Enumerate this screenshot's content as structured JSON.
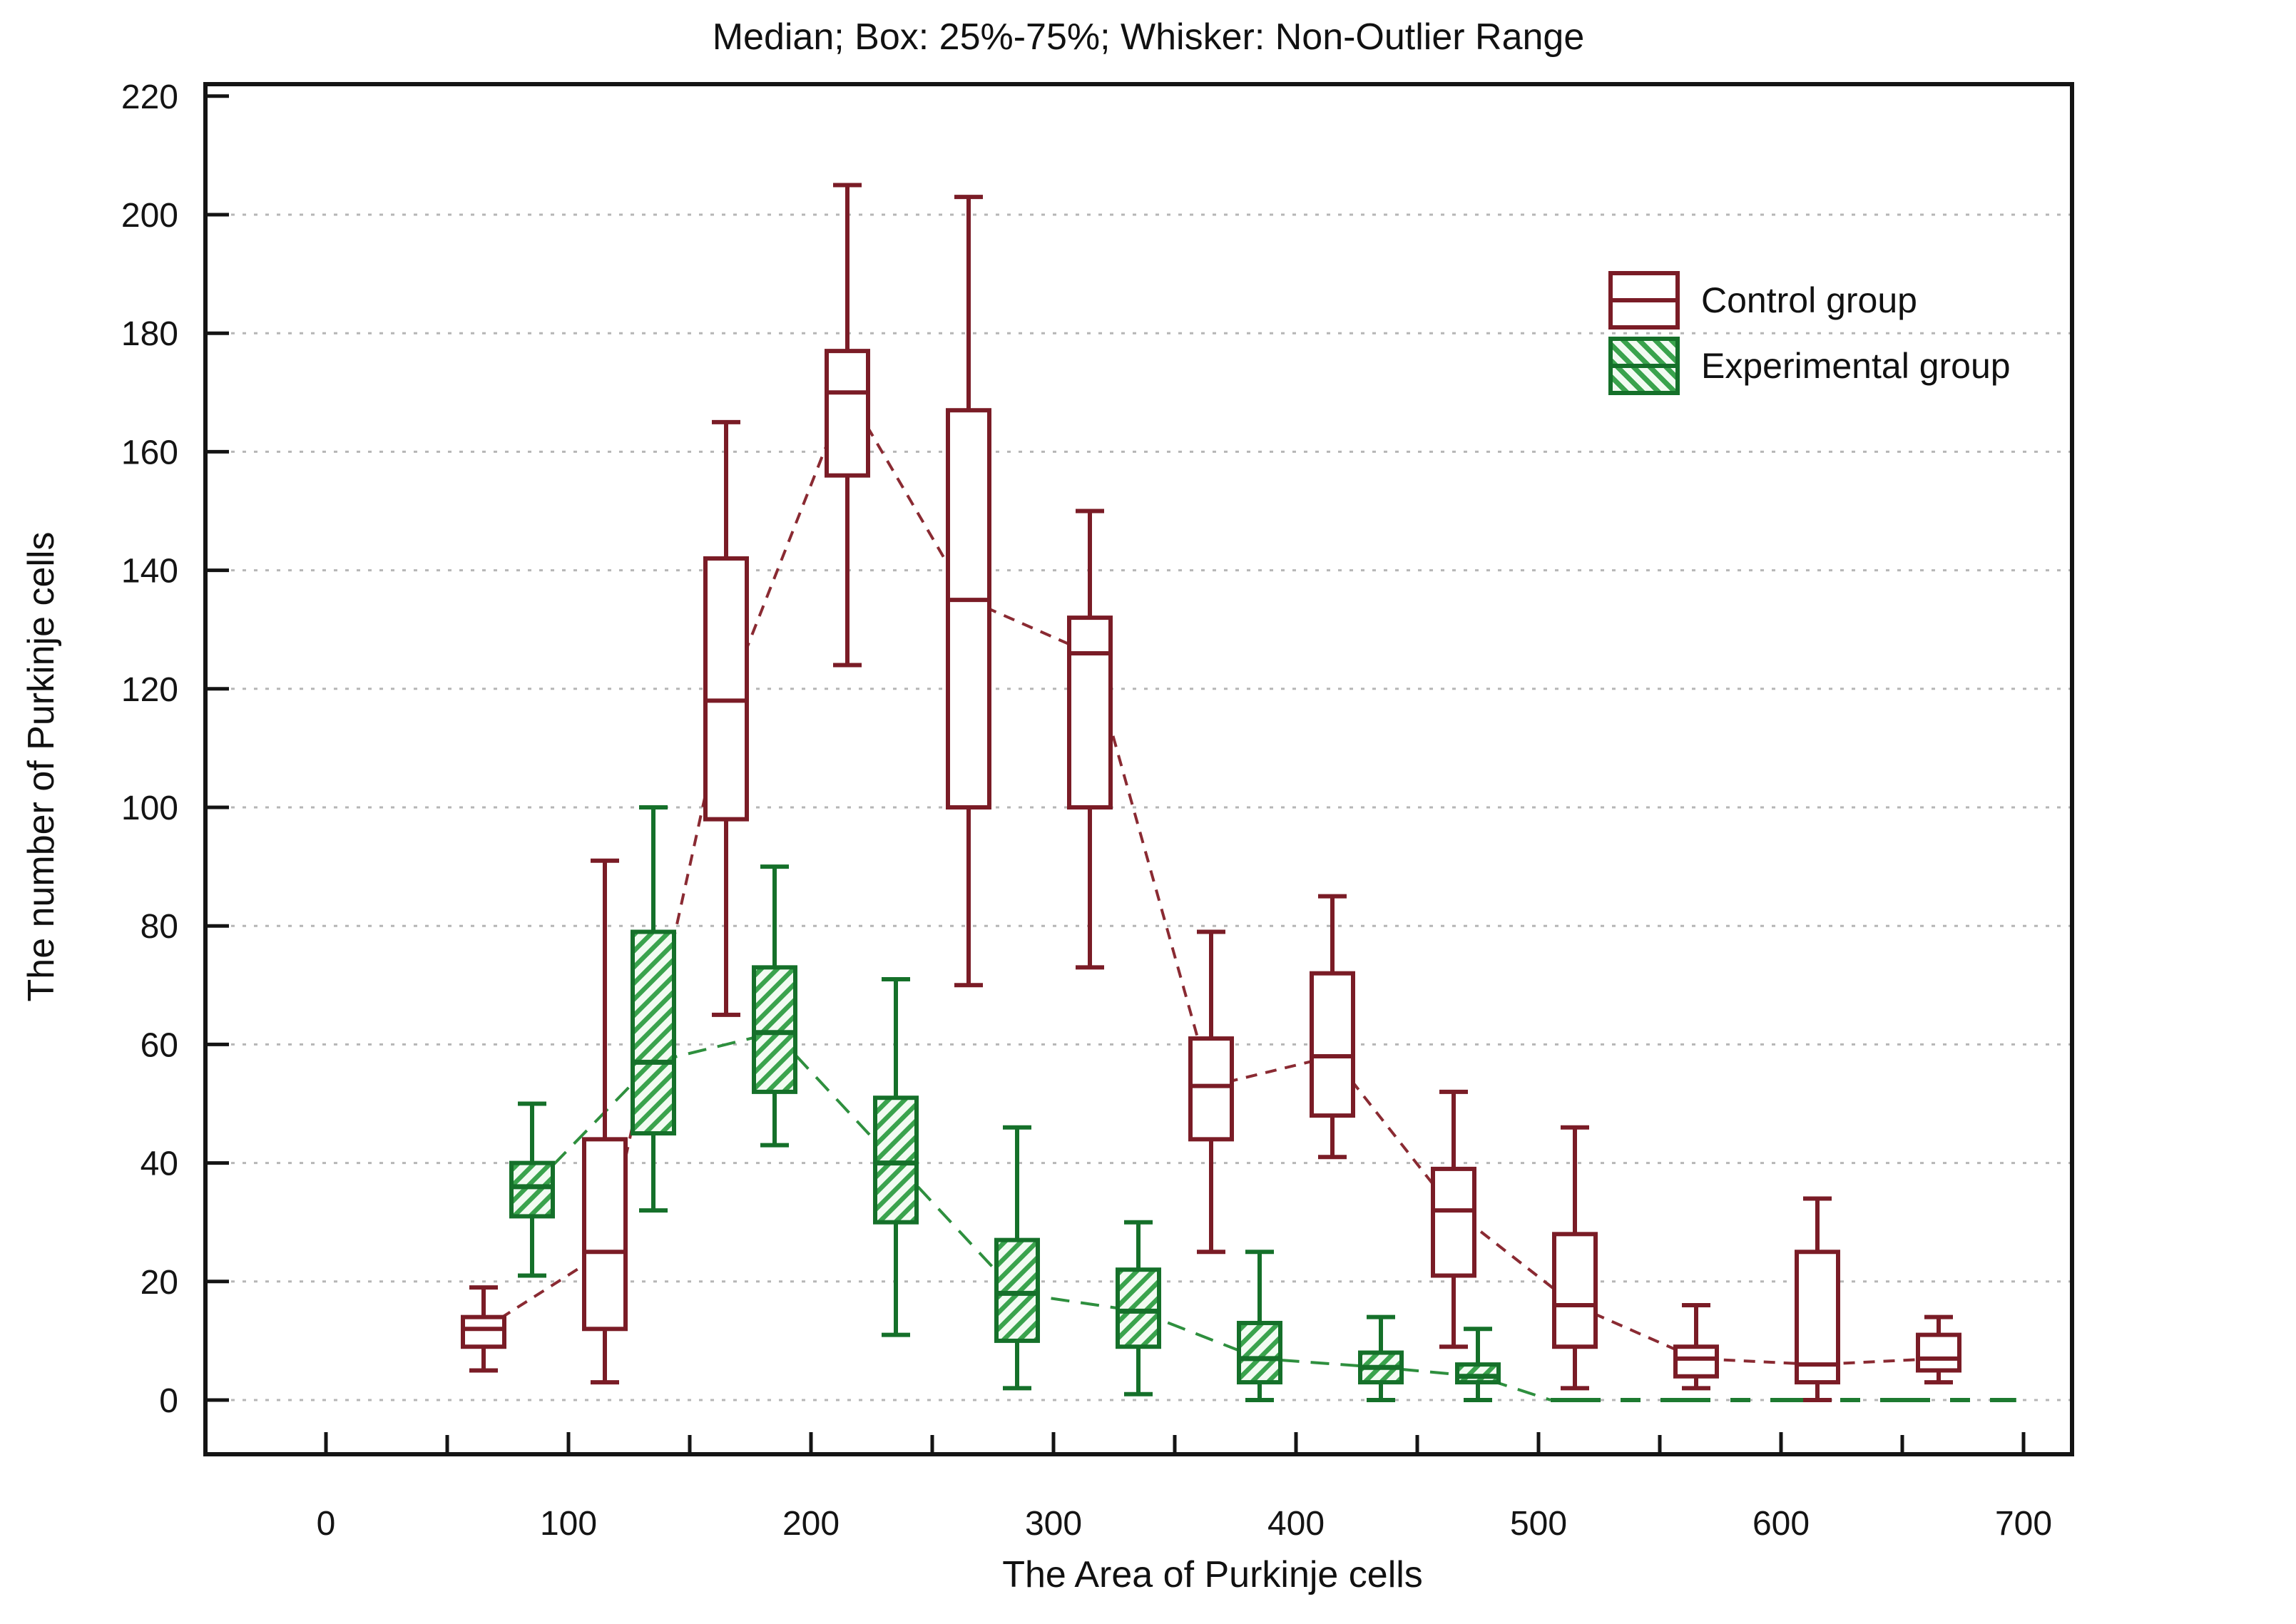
{
  "title": "Median; Box: 25%-75%; Whisker: Non-Outlier Range",
  "x_axis": {
    "label": "The Area of Purkinje cells",
    "major_ticks": [
      0,
      100,
      200,
      300,
      400,
      500,
      600,
      700
    ],
    "minor_ticks": [
      50,
      150,
      250,
      350,
      450,
      550,
      650
    ],
    "range": [
      -50,
      720
    ]
  },
  "y_axis": {
    "label": "The number of Purkinje cells",
    "ticks": [
      0,
      20,
      40,
      60,
      80,
      100,
      120,
      140,
      160,
      180,
      200,
      220
    ],
    "gridlines": [
      0,
      20,
      40,
      60,
      80,
      100,
      120,
      140,
      160,
      180,
      200
    ],
    "range": [
      -9,
      222
    ]
  },
  "legend": [
    {
      "label": "Control group",
      "swatch": "open-box",
      "color": "#7a1c26"
    },
    {
      "label": "Experimental group",
      "swatch": "hatched-box",
      "color": "#15702a"
    }
  ],
  "chart_data": {
    "type": "box",
    "title": "Median; Box: 25%-75%; Whisker: Non-Outlier Range",
    "xlabel": "The Area of Purkinje cells",
    "ylabel": "The number of Purkinje cells",
    "xlim": [
      -50,
      720
    ],
    "ylim": [
      -9,
      222
    ],
    "grid": "dotted-horizontal",
    "legend_position": "upper-right-inside",
    "series": [
      {
        "id": "control",
        "name": "Control group",
        "style": "open-box",
        "color": "#7a1c26",
        "line_style": "dashed",
        "boxes": [
          {
            "x": 65,
            "lo": 5,
            "q1": 9,
            "med": 12,
            "q3": 14,
            "hi": 19
          },
          {
            "x": 115,
            "lo": 3,
            "q1": 12,
            "med": 25,
            "q3": 44,
            "hi": 91
          },
          {
            "x": 165,
            "lo": 65,
            "q1": 98,
            "med": 118,
            "q3": 142,
            "hi": 165
          },
          {
            "x": 215,
            "lo": 124,
            "q1": 156,
            "med": 170,
            "q3": 177,
            "hi": 205
          },
          {
            "x": 265,
            "lo": 70,
            "q1": 100,
            "med": 135,
            "q3": 167,
            "hi": 203
          },
          {
            "x": 315,
            "lo": 73,
            "q1": 100,
            "med": 126,
            "q3": 132,
            "hi": 150
          },
          {
            "x": 365,
            "lo": 25,
            "q1": 44,
            "med": 53,
            "q3": 61,
            "hi": 79
          },
          {
            "x": 415,
            "lo": 41,
            "q1": 48,
            "med": 58,
            "q3": 72,
            "hi": 85
          },
          {
            "x": 465,
            "lo": 9,
            "q1": 21,
            "med": 32,
            "q3": 39,
            "hi": 52
          },
          {
            "x": 515,
            "lo": 2,
            "q1": 9,
            "med": 16,
            "q3": 28,
            "hi": 46
          },
          {
            "x": 565,
            "lo": 2,
            "q1": 4,
            "med": 7,
            "q3": 9,
            "hi": 16
          },
          {
            "x": 615,
            "lo": 0,
            "q1": 3,
            "med": 6,
            "q3": 25,
            "hi": 34
          },
          {
            "x": 665,
            "lo": 3,
            "q1": 5,
            "med": 7,
            "q3": 11,
            "hi": 14
          }
        ]
      },
      {
        "id": "exp",
        "name": "Experimental group",
        "style": "hatched-box",
        "color": "#15702a",
        "line_style": "dashed",
        "connector_end": {
          "x": 505,
          "y": 0
        },
        "boxes": [
          {
            "x": 85,
            "lo": 21,
            "q1": 31,
            "med": 36,
            "q3": 40,
            "hi": 50
          },
          {
            "x": 135,
            "lo": 32,
            "q1": 45,
            "med": 57,
            "q3": 79,
            "hi": 100
          },
          {
            "x": 185,
            "lo": 43,
            "q1": 52,
            "med": 62,
            "q3": 73,
            "hi": 90
          },
          {
            "x": 235,
            "lo": 11,
            "q1": 30,
            "med": 40,
            "q3": 51,
            "hi": 71
          },
          {
            "x": 285,
            "lo": 2,
            "q1": 10,
            "med": 18,
            "q3": 27,
            "hi": 46
          },
          {
            "x": 335,
            "lo": 1,
            "q1": 9,
            "med": 15,
            "q3": 22,
            "hi": 30
          },
          {
            "x": 385,
            "lo": 0,
            "q1": 3,
            "med": 7,
            "q3": 13,
            "hi": 25
          },
          {
            "x": 435,
            "lo": 0,
            "q1": 3,
            "med": 5.5,
            "q3": 8,
            "hi": 14
          },
          {
            "x": 475,
            "lo": 0,
            "q1": 3,
            "med": 4,
            "q3": 6,
            "hi": 12
          }
        ]
      }
    ],
    "zero_line": {
      "series": "Experimental group",
      "y": 0,
      "from_x": 505,
      "to_x": 697
    }
  }
}
